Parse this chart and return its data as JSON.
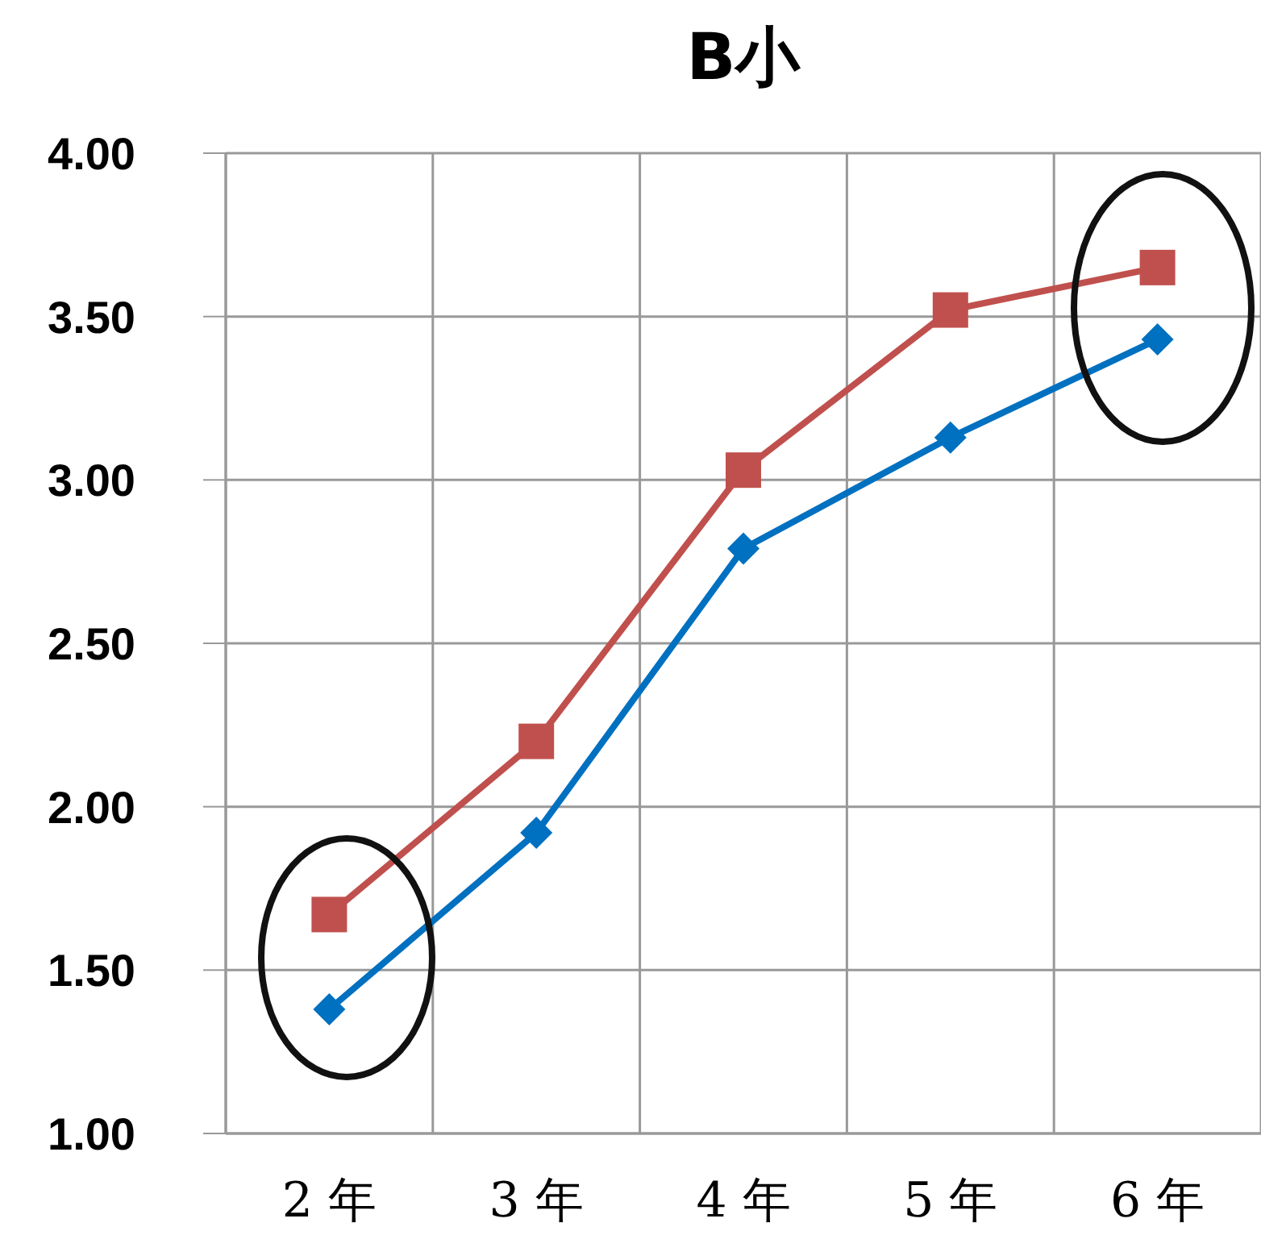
{
  "chart_data": {
    "type": "line",
    "title": "B小",
    "categories": [
      "2 年",
      "3 年",
      "4 年",
      "5 年",
      "6 年"
    ],
    "series": [
      {
        "color": "#c0504d",
        "marker": "square",
        "values": [
          1.67,
          2.2,
          3.03,
          3.52,
          3.65
        ]
      },
      {
        "color": "#0070c0",
        "marker": "diamond",
        "values": [
          1.38,
          1.92,
          2.79,
          3.13,
          3.43
        ]
      }
    ],
    "ylim": [
      1,
      4
    ],
    "yticks": [
      {
        "value": 1,
        "label": "1.00"
      },
      {
        "value": 1.5,
        "label": "1.50"
      },
      {
        "value": 2,
        "label": "2.00"
      },
      {
        "value": 2.5,
        "label": "2.50"
      },
      {
        "value": 3,
        "label": "3.00"
      },
      {
        "value": 3.5,
        "label": "3.50"
      },
      {
        "value": 4,
        "label": "4.00"
      }
    ],
    "grid": true
  }
}
